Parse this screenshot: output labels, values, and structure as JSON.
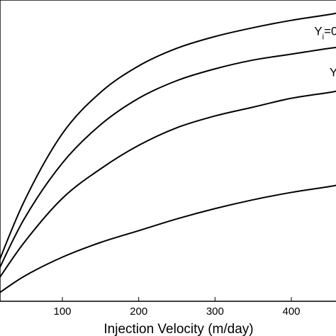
{
  "chart_data": {
    "type": "line",
    "xlabel": "Injection Velocity (m/day)",
    "ylabel": "",
    "title": "",
    "xlim": [
      10,
      470
    ],
    "xticks": [
      100,
      200,
      300,
      400
    ],
    "ylim": [
      0,
      1
    ],
    "grid": false,
    "legend": "none",
    "series": [
      {
        "x": [
          10,
          50,
          100,
          150,
          200,
          250,
          300,
          350,
          400,
          450,
          470
        ],
        "y": [
          0.09,
          0.34,
          0.57,
          0.71,
          0.8,
          0.86,
          0.9,
          0.93,
          0.955,
          0.975,
          0.985
        ]
      },
      {
        "x": [
          10,
          50,
          100,
          150,
          200,
          250,
          300,
          350,
          400,
          450,
          470
        ],
        "y": [
          0.07,
          0.28,
          0.47,
          0.6,
          0.69,
          0.75,
          0.79,
          0.82,
          0.84,
          0.86,
          0.865
        ]
      },
      {
        "x": [
          10,
          50,
          100,
          150,
          200,
          250,
          300,
          350,
          400,
          450,
          470
        ],
        "y": [
          0.05,
          0.2,
          0.35,
          0.45,
          0.53,
          0.59,
          0.63,
          0.66,
          0.69,
          0.71,
          0.72
        ]
      },
      {
        "x": [
          10,
          50,
          100,
          150,
          200,
          250,
          300,
          350,
          400,
          450,
          470
        ],
        "y": [
          0.015,
          0.085,
          0.15,
          0.2,
          0.24,
          0.28,
          0.315,
          0.345,
          0.37,
          0.39,
          0.4
        ]
      }
    ],
    "annotations": [
      {
        "main": "Y",
        "sub": "i",
        "rest": "=",
        "x": 450,
        "y": 1.04
      },
      {
        "main": "Y",
        "sub": "i",
        "rest": "=0",
        "x": 430,
        "y": 0.905
      },
      {
        "main": "Y",
        "sub": "i",
        "rest": "=",
        "x": 450,
        "y": 0.765
      }
    ]
  }
}
